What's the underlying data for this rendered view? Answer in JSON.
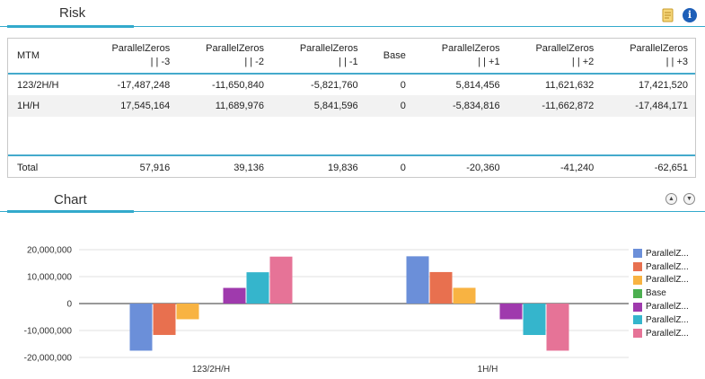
{
  "risk": {
    "title": "Risk",
    "icons": {
      "note": "note-icon",
      "info": "info-icon"
    }
  },
  "table": {
    "columns": [
      {
        "line1": "MTM",
        "line2": ""
      },
      {
        "line1": "ParallelZeros",
        "line2": "| | -3"
      },
      {
        "line1": "ParallelZeros",
        "line2": "| | -2"
      },
      {
        "line1": "ParallelZeros",
        "line2": "| | -1"
      },
      {
        "line1": "Base",
        "line2": ""
      },
      {
        "line1": "ParallelZeros",
        "line2": "| | +1"
      },
      {
        "line1": "ParallelZeros",
        "line2": "| | +2"
      },
      {
        "line1": "ParallelZeros",
        "line2": "| | +3"
      }
    ],
    "rows": [
      [
        "123/2H/H",
        "-17,487,248",
        "-11,650,840",
        "-5,821,760",
        "0",
        "5,814,456",
        "11,621,632",
        "17,421,520"
      ],
      [
        "1H/H",
        "17,545,164",
        "11,689,976",
        "5,841,596",
        "0",
        "-5,834,816",
        "-11,662,872",
        "-17,484,171"
      ]
    ],
    "total": [
      "Total",
      "57,916",
      "39,136",
      "19,836",
      "0",
      "-20,360",
      "-41,240",
      "-62,651"
    ]
  },
  "chart": {
    "title": "Chart",
    "icons": {
      "up": "collapse-up-icon",
      "down": "expand-down-icon"
    }
  },
  "chart_data": {
    "type": "bar",
    "categories": [
      "123/2H/H",
      "1H/H"
    ],
    "series": [
      {
        "name": "ParallelZ...",
        "color": "#6b8fd9",
        "values": [
          -17487248,
          17545164
        ]
      },
      {
        "name": "ParallelZ...",
        "color": "#e8704f",
        "values": [
          -11650840,
          11689976
        ]
      },
      {
        "name": "ParallelZ...",
        "color": "#f8b342",
        "values": [
          -5821760,
          5841596
        ]
      },
      {
        "name": "Base",
        "color": "#4caf50",
        "values": [
          0,
          0
        ]
      },
      {
        "name": "ParallelZ...",
        "color": "#9f3aad",
        "values": [
          5814456,
          -5834816
        ]
      },
      {
        "name": "ParallelZ...",
        "color": "#35b5cc",
        "values": [
          11621632,
          -11662872
        ]
      },
      {
        "name": "ParallelZ...",
        "color": "#e67397",
        "values": [
          17421520,
          -17484171
        ]
      }
    ],
    "y_ticks": [
      "20,000,000",
      "10,000,000",
      "0",
      "-10,000,000",
      "-20,000,000"
    ],
    "ylim": [
      -20000000,
      20000000
    ],
    "legend_position": "right"
  }
}
